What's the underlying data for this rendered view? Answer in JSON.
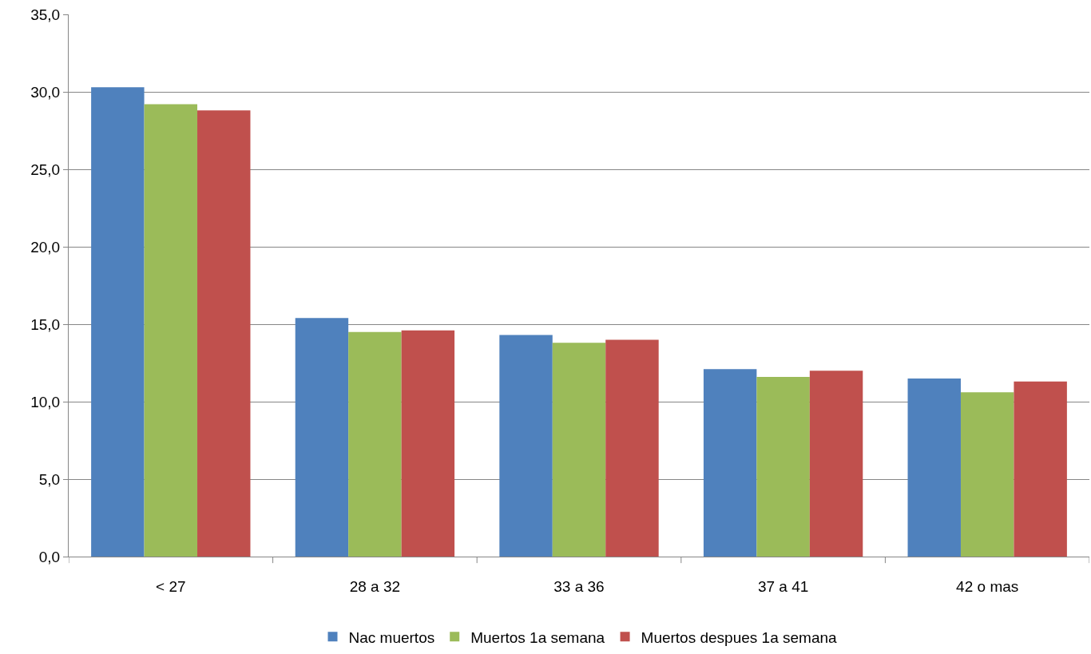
{
  "chart_data": {
    "type": "bar",
    "categories": [
      "< 27",
      "28 a 32",
      "33 a 36",
      "37 a 41",
      "42 o mas"
    ],
    "series": [
      {
        "name": "Nac muertos",
        "color": "#4f81bd",
        "values": [
          30.3,
          15.4,
          14.3,
          12.1,
          11.5
        ]
      },
      {
        "name": "Muertos 1a semana",
        "color": "#9bbb59",
        "values": [
          29.2,
          14.5,
          13.8,
          11.6,
          10.6
        ]
      },
      {
        "name": "Muertos despues 1a semana",
        "color": "#c0504d",
        "values": [
          28.8,
          14.6,
          14.0,
          12.0,
          11.3
        ]
      }
    ],
    "ylim": [
      0,
      35
    ],
    "yticks": [
      {
        "value": 0,
        "label": "0,0"
      },
      {
        "value": 5,
        "label": "5,0"
      },
      {
        "value": 10,
        "label": "10,0"
      },
      {
        "value": 15,
        "label": "15,0"
      },
      {
        "value": 20,
        "label": "20,0"
      },
      {
        "value": 25,
        "label": "25,0"
      },
      {
        "value": 30,
        "label": "30,0"
      },
      {
        "value": 35,
        "label": "35,0"
      }
    ],
    "grid": "y",
    "legend": "bottom"
  }
}
